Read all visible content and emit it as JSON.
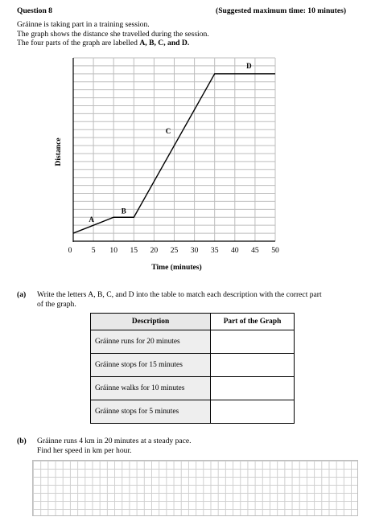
{
  "header": {
    "question": "Question 8",
    "time": "(Suggested maximum time: 10 minutes)"
  },
  "intro": {
    "line1": "Gráinne is taking part in a training session.",
    "line2": "The graph shows the distance she travelled during the session.",
    "line3_pre": "The four parts of the graph are labelled ",
    "line3_labels": "A, B, C, and D."
  },
  "chart_data": {
    "type": "line",
    "xlabel": "Time (minutes)",
    "ylabel": "Distance",
    "x_ticks": [
      "0",
      "5",
      "10",
      "15",
      "20",
      "25",
      "30",
      "35",
      "40",
      "45",
      "50"
    ],
    "xlim": [
      0,
      50
    ],
    "grid": true,
    "series": [
      {
        "x": [
          0,
          10,
          15,
          35,
          50
        ],
        "y": [
          1,
          3,
          3,
          21,
          21
        ]
      }
    ],
    "segment_labels": [
      {
        "label": "A",
        "x": 4.5,
        "y": 2.4
      },
      {
        "label": "B",
        "x": 12.5,
        "y": 3.5
      },
      {
        "label": "C",
        "x": 23.5,
        "y": 13.5
      },
      {
        "label": "D",
        "x": 43.5,
        "y": 21.7
      }
    ]
  },
  "part_a": {
    "label": "(a)",
    "text_line1": "Write the letters A, B, C, and D into the table to match each description with the correct part",
    "text_line2": "of the graph.",
    "table": {
      "headers": [
        "Description",
        "Part of the Graph"
      ],
      "rows": [
        {
          "description": "Gráinne runs for 20 minutes",
          "part": ""
        },
        {
          "description": "Gráinne stops for 15 minutes",
          "part": ""
        },
        {
          "description": "Gráinne walks for 10 minutes",
          "part": ""
        },
        {
          "description": "Gráinne stops for 5 minutes",
          "part": ""
        }
      ]
    }
  },
  "part_b": {
    "label": "(b)",
    "text_line1": "Gráinne runs 4 km in 20 minutes at a steady pace.",
    "text_line2": "Find her speed in km per hour."
  }
}
